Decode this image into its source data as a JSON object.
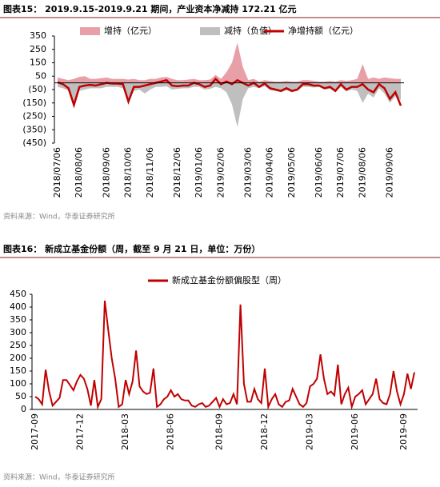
{
  "chart_data": [
    {
      "type": "area",
      "title": "图表15：  2019.9.15-2019.9.21 期间，产业资本净减持 172.21 亿元",
      "source": "资料来源：Wind，华泰证券研究所",
      "categories": [
        "2018/07/06",
        null,
        null,
        null,
        "2018/08/06",
        null,
        null,
        null,
        null,
        "2018/09/06",
        null,
        null,
        null,
        "2018/10/06",
        null,
        null,
        null,
        "2018/11/06",
        null,
        null,
        null,
        null,
        "2018/12/06",
        null,
        null,
        null,
        "2019/01/06",
        null,
        null,
        null,
        "2019/02/06",
        null,
        null,
        null,
        null,
        "2019/03/06",
        null,
        null,
        null,
        "2019/04/06",
        null,
        null,
        null,
        "2019/05/06",
        null,
        null,
        null,
        null,
        "2019/06/06",
        null,
        null,
        null,
        "2019/07/06",
        null,
        null,
        null,
        "2019/08/06",
        null,
        null,
        null,
        null,
        "2019/09/06",
        null,
        null
      ],
      "series": [
        {
          "name": "增持（亿元）",
          "type": "area",
          "color": "#e8a0a8",
          "values": [
            40,
            30,
            20,
            30,
            45,
            50,
            30,
            30,
            35,
            40,
            30,
            30,
            30,
            25,
            30,
            20,
            20,
            30,
            30,
            40,
            45,
            30,
            20,
            20,
            25,
            30,
            20,
            20,
            25,
            60,
            30,
            80,
            150,
            300,
            120,
            20,
            30,
            10,
            20,
            15,
            10,
            10,
            15,
            10,
            10,
            20,
            20,
            15,
            10,
            10,
            15,
            10,
            20,
            15,
            20,
            30,
            140,
            30,
            40,
            30,
            40,
            35,
            30,
            30
          ]
        },
        {
          "name": "减持（负值）",
          "type": "area",
          "color": "#bfbfbf",
          "values": [
            -30,
            -40,
            -60,
            -180,
            -60,
            -50,
            -40,
            -40,
            -40,
            -30,
            -30,
            -30,
            -40,
            -150,
            -60,
            -50,
            -80,
            -50,
            -30,
            -30,
            -25,
            -50,
            -45,
            -40,
            -40,
            -30,
            -30,
            -50,
            -45,
            -30,
            -40,
            -70,
            -160,
            -330,
            -120,
            -40,
            -30,
            -40,
            -25,
            -55,
            -60,
            -70,
            -55,
            -70,
            -60,
            -30,
            -30,
            -35,
            -30,
            -50,
            -45,
            -70,
            -30,
            -65,
            -50,
            -60,
            -150,
            -80,
            -110,
            -40,
            -80,
            -150,
            -100,
            -130
          ]
        },
        {
          "name": "净增持额（亿元）",
          "type": "line",
          "color": "#c00000",
          "values": [
            5,
            -10,
            -40,
            -165,
            -30,
            -20,
            -15,
            -20,
            -10,
            0,
            -5,
            -5,
            -10,
            -140,
            -30,
            -30,
            -20,
            -10,
            0,
            10,
            20,
            -20,
            -25,
            -20,
            -20,
            0,
            -10,
            -30,
            -20,
            30,
            -10,
            10,
            -10,
            20,
            0,
            -20,
            0,
            -30,
            -5,
            -40,
            -50,
            -60,
            -40,
            -60,
            -50,
            -10,
            -10,
            -20,
            -20,
            -40,
            -30,
            -60,
            -10,
            -50,
            -30,
            -30,
            -10,
            -50,
            -70,
            -10,
            -40,
            -120,
            -70,
            -170
          ]
        }
      ],
      "ylim": [
        -450,
        350
      ],
      "yticks": [
        350,
        250,
        150,
        50,
        {
          "value": -50,
          "label": "(50)"
        },
        {
          "value": -150,
          "label": "(150)"
        },
        {
          "value": -250,
          "label": "(250)"
        },
        {
          "value": -350,
          "label": "(350)"
        },
        {
          "value": -450,
          "label": "(450)"
        }
      ]
    },
    {
      "type": "line",
      "title": "图表16：  新成立基金份额（周，截至 9 月 21 日，单位：万份）",
      "source": "资料来源：Wind，华泰证券研究所",
      "categories": [
        "2017-09",
        null,
        null,
        null,
        null,
        null,
        null,
        null,
        null,
        null,
        null,
        null,
        null,
        "2017-12",
        null,
        null,
        null,
        null,
        null,
        null,
        null,
        null,
        null,
        null,
        null,
        null,
        "2018-03",
        null,
        null,
        null,
        null,
        null,
        null,
        null,
        null,
        null,
        null,
        null,
        null,
        "2018-06",
        null,
        null,
        null,
        null,
        null,
        null,
        null,
        null,
        null,
        null,
        null,
        null,
        null,
        "2018-09",
        null,
        null,
        null,
        null,
        null,
        null,
        null,
        null,
        null,
        null,
        null,
        null,
        "2018-12",
        null,
        null,
        null,
        null,
        null,
        null,
        null,
        null,
        null,
        null,
        null,
        null,
        "2019-03",
        null,
        null,
        null,
        null,
        null,
        null,
        null,
        null,
        null,
        null,
        null,
        null,
        "2019-06",
        null,
        null,
        null,
        null,
        null,
        null,
        null,
        null,
        null,
        null,
        null,
        null,
        null,
        "2019-09",
        null,
        null,
        null
      ],
      "series": [
        {
          "name": "新成立基金份额偏股型（周）",
          "type": "line",
          "color": "#c00000",
          "values": [
            50,
            40,
            20,
            155,
            70,
            15,
            30,
            45,
            115,
            115,
            95,
            75,
            110,
            135,
            120,
            80,
            15,
            115,
            10,
            40,
            425,
            310,
            200,
            120,
            10,
            20,
            115,
            60,
            110,
            230,
            90,
            70,
            60,
            65,
            160,
            10,
            20,
            40,
            50,
            75,
            50,
            60,
            40,
            35,
            35,
            15,
            10,
            20,
            25,
            10,
            15,
            30,
            45,
            10,
            40,
            20,
            25,
            60,
            20,
            410,
            100,
            30,
            30,
            80,
            40,
            25,
            160,
            10,
            40,
            60,
            20,
            10,
            30,
            35,
            80,
            50,
            20,
            10,
            25,
            90,
            100,
            120,
            215,
            120,
            60,
            70,
            55,
            175,
            20,
            60,
            85,
            10,
            50,
            60,
            75,
            20,
            40,
            60,
            120,
            40,
            25,
            20,
            60,
            150,
            70,
            20,
            60,
            140,
            80,
            145
          ]
        }
      ],
      "ylim": [
        0,
        450
      ],
      "yticks": [
        0,
        50,
        100,
        150,
        200,
        250,
        300,
        350,
        400,
        450
      ]
    }
  ]
}
